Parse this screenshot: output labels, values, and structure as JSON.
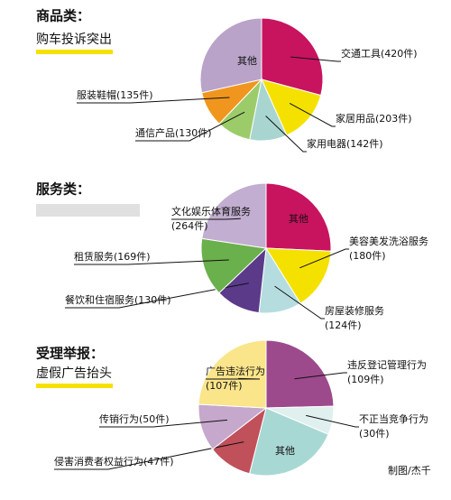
{
  "chart_data": [
    {
      "type": "pie",
      "title": "商品类：",
      "subtitle": "购车投诉突出",
      "categories": [
        "交通工具",
        "家居用品",
        "家用电器",
        "通信产品",
        "服装鞋帽",
        "其他"
      ],
      "values": [
        420,
        203,
        142,
        130,
        135,
        410
      ],
      "value_labels": [
        "(420件)",
        "(203件)",
        "(142件)",
        "(130件)",
        "(135件)",
        null
      ],
      "colors": [
        "#c8135f",
        "#f5e100",
        "#a8d5d0",
        "#9ccc6a",
        "#f0961e",
        "#b9a3c8"
      ]
    },
    {
      "type": "pie",
      "title": "服务类：",
      "categories": [
        "其他",
        "美容美发洗浴服务",
        "房屋装修服务",
        "餐饮和住宿服务",
        "租赁服务",
        "文化娱乐体育服务"
      ],
      "values": [
        300,
        180,
        124,
        130,
        169,
        264
      ],
      "value_labels": [
        null,
        "(180件)",
        "(124件)",
        "(130件)",
        "(169件)",
        "(264件)"
      ],
      "colors": [
        "#c8135f",
        "#f5e100",
        "#b5dde0",
        "#5b3a8a",
        "#6ab04c",
        "#c2aed0"
      ]
    },
    {
      "type": "pie",
      "title": "受理举报：",
      "subtitle": "虚假广告抬头",
      "note": "制图/杰千",
      "categories": [
        "违反登记管理行为",
        "不正当竞争行为",
        "其他",
        "侵害消费者权益行为",
        "传销行为",
        "广告违法行为"
      ],
      "values": [
        109,
        30,
        100,
        47,
        50,
        107
      ],
      "value_labels": [
        "(109件)",
        "(30件)",
        null,
        "(47件)",
        "(50件)",
        "(107件)"
      ],
      "colors": [
        "#9c4a8c",
        "#dff0ee",
        "#a8d8d4",
        "#c0505a",
        "#c6a8cc",
        "#fbe58a"
      ]
    }
  ]
}
